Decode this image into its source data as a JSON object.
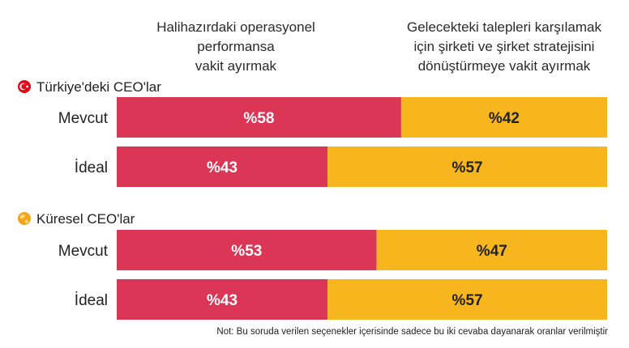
{
  "chart_data": {
    "type": "bar",
    "stacked": true,
    "orientation": "horizontal",
    "headers": [
      {
        "lines": [
          "Halihazırdaki operasyonel",
          "performansa",
          "vakit ayırmak"
        ],
        "color": "#dc3656"
      },
      {
        "lines": [
          "Gelecekteki talepleri  karşılamak",
          "için şirketi ve şirket stratejisini",
          "dönüştürmeye vakit ayırmak"
        ],
        "color": "#f7b51e"
      }
    ],
    "groups": [
      {
        "name": "Türkiye'deki CEO'lar",
        "icon": "turkey-flag-icon",
        "rows": [
          {
            "label": "Mevcut",
            "values": [
              58,
              42
            ],
            "value_labels": [
              "%58",
              "%42"
            ]
          },
          {
            "label": "İdeal",
            "values": [
              43,
              57
            ],
            "value_labels": [
              "%43",
              "%57"
            ]
          }
        ]
      },
      {
        "name": "Küresel CEO'lar",
        "icon": "globe-icon",
        "rows": [
          {
            "label": "Mevcut",
            "values": [
              53,
              47
            ],
            "value_labels": [
              "%53",
              "%47"
            ]
          },
          {
            "label": "İdeal",
            "values": [
              43,
              57
            ],
            "value_labels": [
              "%43",
              "%57"
            ]
          }
        ]
      }
    ],
    "xlim": [
      0,
      100
    ],
    "grid": false,
    "legend": "top"
  },
  "note": "Not: Bu soruda verilen seçenekler içerisinde sadece bu iki cevaba dayanarak oranlar verilmiştir",
  "colors": {
    "series_1": "#dc3656",
    "series_2": "#f7b51e",
    "label_on_series_1": "#ffffff",
    "label_on_series_2": "#222222"
  }
}
